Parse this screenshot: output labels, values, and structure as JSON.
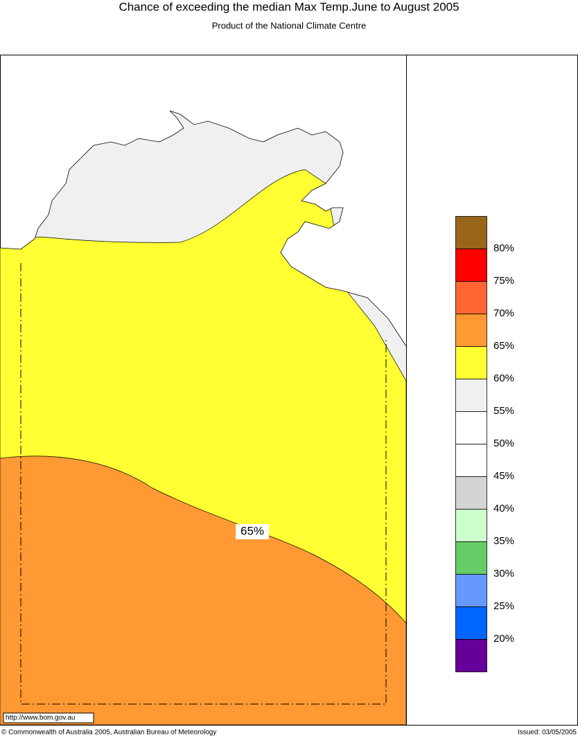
{
  "header": {
    "title": "Chance of exceeding the median Max Temp.June to August 2005",
    "subtitle": "Product of the National Climate Centre"
  },
  "map": {
    "contour_labels": [
      "65%"
    ],
    "url": "http://www.bom.gov.au"
  },
  "legend": {
    "colors": [
      "#996619",
      "#ff0000",
      "#ff6633",
      "#ff9933",
      "#ffff33",
      "#f0f0f0",
      "#ffffff",
      "#ffffff",
      "#d4d4d4",
      "#ccffcc",
      "#66cc66",
      "#6699ff",
      "#0066ff",
      "#660099"
    ],
    "labels": [
      "80%",
      "75%",
      "70%",
      "65%",
      "60%",
      "55%",
      "50%",
      "45%",
      "40%",
      "35%",
      "30%",
      "25%",
      "20%"
    ]
  },
  "footer": {
    "copyright": "© Commonwealth of Australia 2005, Australian Bureau of Meteorology",
    "issued": "Issued: 03/05/2005"
  }
}
